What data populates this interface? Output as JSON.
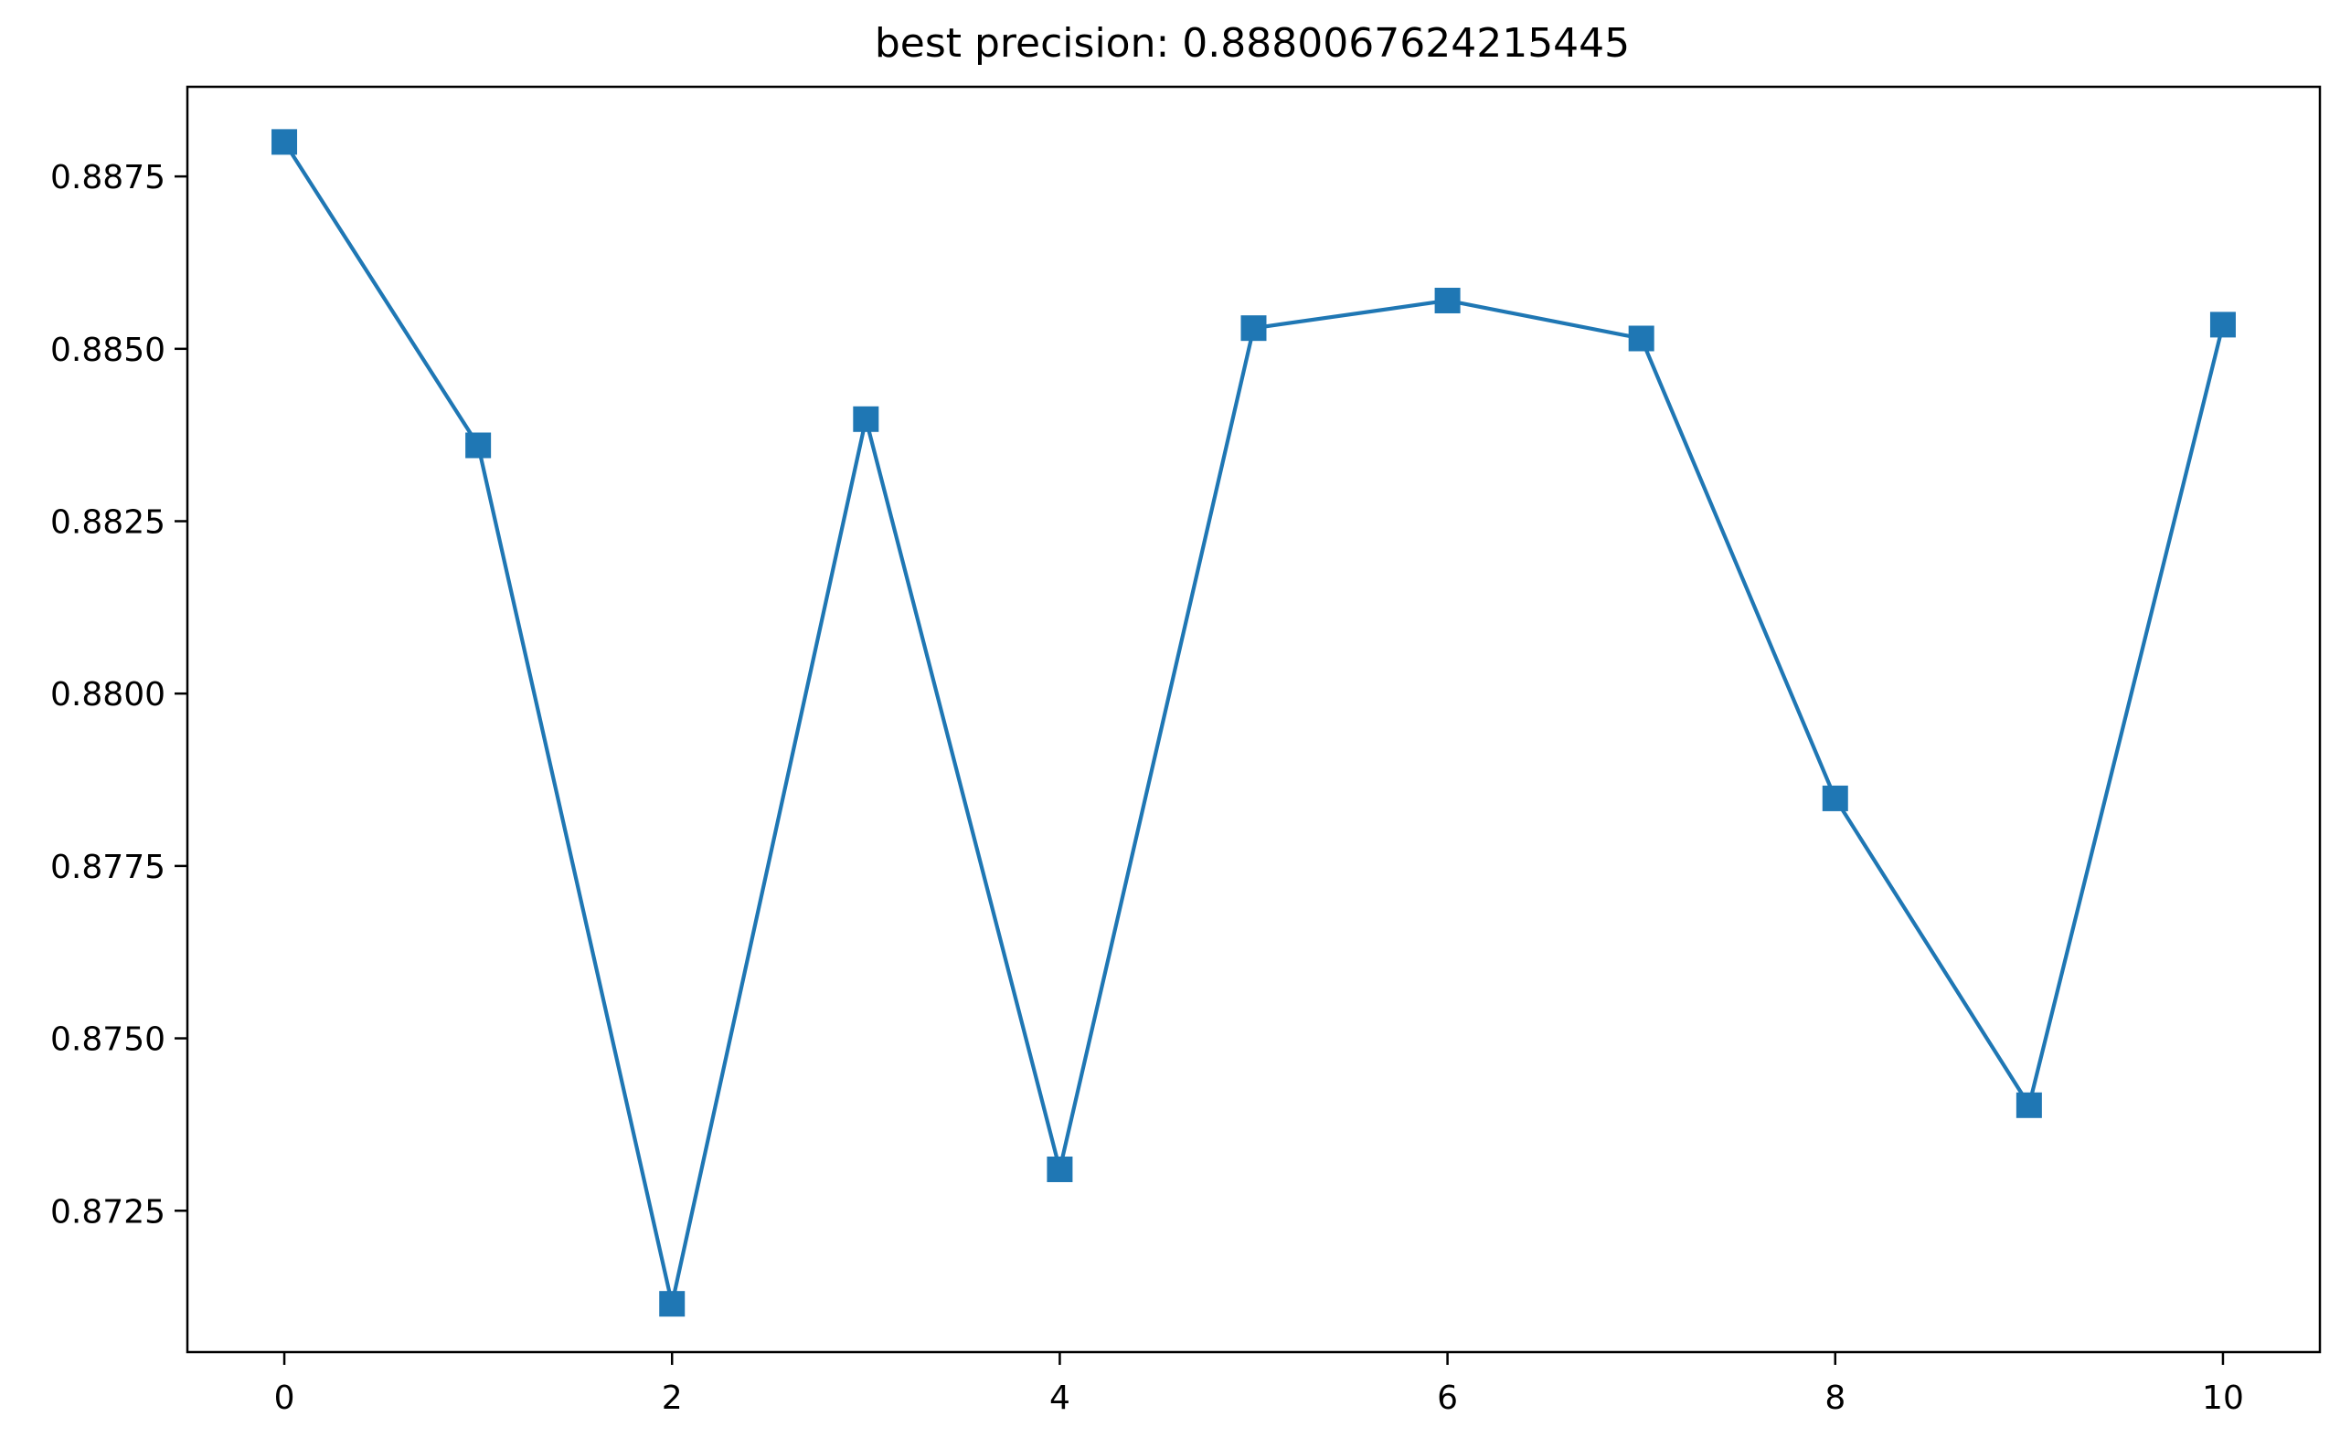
{
  "chart_data": {
    "type": "line",
    "title": "best precision: 0.8880067624215445",
    "xlabel": "",
    "ylabel": "",
    "x": [
      0,
      1,
      2,
      3,
      4,
      5,
      6,
      7,
      8,
      9,
      10
    ],
    "series": [
      {
        "values": [
          0.888,
          0.8836,
          0.87115,
          0.88398,
          0.8731,
          0.8853,
          0.8857,
          0.88515,
          0.87848,
          0.87403,
          0.88535
        ],
        "color": "#1f77b4",
        "marker": "square"
      }
    ],
    "xlim": [
      -0.5,
      10.5
    ],
    "ylim": [
      0.87045,
      0.8888
    ],
    "x_ticks": [
      0,
      2,
      4,
      6,
      8,
      10
    ],
    "x_tick_labels": [
      "0",
      "2",
      "4",
      "6",
      "8",
      "10"
    ],
    "y_ticks": [
      0.8725,
      0.875,
      0.8775,
      0.88,
      0.8825,
      0.885,
      0.8875
    ],
    "y_tick_labels": [
      "0.8725",
      "0.8750",
      "0.8775",
      "0.8800",
      "0.8825",
      "0.8850",
      "0.8875"
    ],
    "grid": false,
    "legend": "none"
  }
}
